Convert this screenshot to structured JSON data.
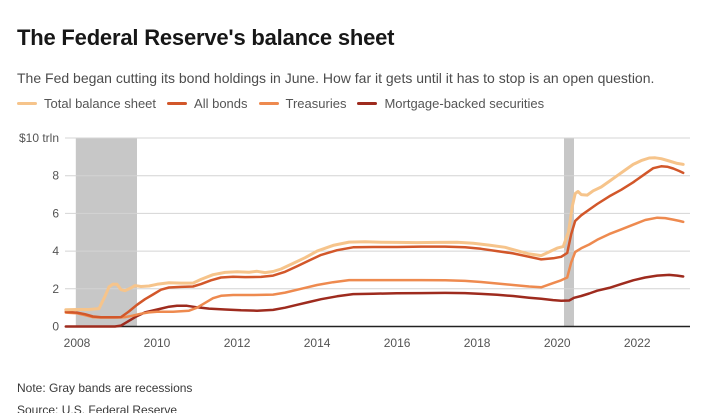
{
  "header": {
    "title": "The Federal Reserve's balance sheet",
    "subtitle": "The Fed began cutting its bond holdings in June. How far it gets until it has to stop is an open question."
  },
  "footer": {
    "note": "Note: Gray bands are recessions",
    "source": "Source: U.S. Federal Reserve"
  },
  "chart_data": {
    "type": "line",
    "title": "The Federal Reserve's balance sheet",
    "subtitle": "The Fed began cutting its bond holdings in June. How far it gets until it has to stop is an open question.",
    "unit": "trillions of U.S. dollars",
    "y_axis_top_label": "$10 trln",
    "ylim": [
      0,
      10
    ],
    "y_ticks": [
      0,
      2,
      4,
      6,
      8,
      10
    ],
    "x_range": [
      2007.7,
      2023.32
    ],
    "x_ticks": [
      2008,
      2010,
      2012,
      2014,
      2016,
      2018,
      2020,
      2022
    ],
    "grid": true,
    "legend_position": "top",
    "colors": {
      "recession_band": "#c7c7c7",
      "gridline": "#d4d4d4",
      "axis_line": "#222222"
    },
    "recessions": [
      {
        "start": 2007.97,
        "end": 2009.5
      },
      {
        "start": 2020.17,
        "end": 2020.42
      }
    ],
    "series": [
      {
        "name": "Total balance sheet",
        "color": "#f6c48b",
        "points": [
          [
            2007.72,
            0.89
          ],
          [
            2008.0,
            0.9
          ],
          [
            2008.3,
            0.9
          ],
          [
            2008.55,
            0.95
          ],
          [
            2008.7,
            1.6
          ],
          [
            2008.8,
            2.1
          ],
          [
            2008.9,
            2.25
          ],
          [
            2009.0,
            2.24
          ],
          [
            2009.1,
            1.95
          ],
          [
            2009.2,
            1.9
          ],
          [
            2009.35,
            2.05
          ],
          [
            2009.45,
            2.17
          ],
          [
            2009.6,
            2.12
          ],
          [
            2009.8,
            2.15
          ],
          [
            2010.0,
            2.24
          ],
          [
            2010.3,
            2.32
          ],
          [
            2010.6,
            2.3
          ],
          [
            2010.9,
            2.3
          ],
          [
            2011.1,
            2.5
          ],
          [
            2011.4,
            2.75
          ],
          [
            2011.7,
            2.87
          ],
          [
            2012.0,
            2.9
          ],
          [
            2012.3,
            2.88
          ],
          [
            2012.5,
            2.93
          ],
          [
            2012.7,
            2.86
          ],
          [
            2012.9,
            2.92
          ],
          [
            2013.1,
            3.05
          ],
          [
            2013.4,
            3.35
          ],
          [
            2013.7,
            3.65
          ],
          [
            2014.0,
            4.0
          ],
          [
            2014.4,
            4.3
          ],
          [
            2014.8,
            4.48
          ],
          [
            2015.2,
            4.5
          ],
          [
            2015.6,
            4.47
          ],
          [
            2016.0,
            4.46
          ],
          [
            2016.5,
            4.45
          ],
          [
            2017.0,
            4.46
          ],
          [
            2017.5,
            4.47
          ],
          [
            2017.9,
            4.42
          ],
          [
            2018.3,
            4.32
          ],
          [
            2018.7,
            4.2
          ],
          [
            2019.0,
            4.02
          ],
          [
            2019.3,
            3.85
          ],
          [
            2019.6,
            3.76
          ],
          [
            2019.8,
            3.96
          ],
          [
            2020.0,
            4.16
          ],
          [
            2020.15,
            4.24
          ],
          [
            2020.28,
            5.0
          ],
          [
            2020.38,
            6.4
          ],
          [
            2020.45,
            7.05
          ],
          [
            2020.52,
            7.16
          ],
          [
            2020.6,
            7.0
          ],
          [
            2020.75,
            6.97
          ],
          [
            2020.9,
            7.2
          ],
          [
            2021.1,
            7.4
          ],
          [
            2021.3,
            7.7
          ],
          [
            2021.5,
            8.0
          ],
          [
            2021.7,
            8.3
          ],
          [
            2021.9,
            8.6
          ],
          [
            2022.1,
            8.8
          ],
          [
            2022.3,
            8.94
          ],
          [
            2022.45,
            8.95
          ],
          [
            2022.6,
            8.9
          ],
          [
            2022.8,
            8.78
          ],
          [
            2023.0,
            8.65
          ],
          [
            2023.15,
            8.6
          ]
        ]
      },
      {
        "name": "All bonds",
        "color": "#d2572a",
        "points": [
          [
            2007.72,
            0.78
          ],
          [
            2008.0,
            0.74
          ],
          [
            2008.2,
            0.65
          ],
          [
            2008.4,
            0.53
          ],
          [
            2008.6,
            0.49
          ],
          [
            2008.9,
            0.49
          ],
          [
            2009.1,
            0.5
          ],
          [
            2009.3,
            0.8
          ],
          [
            2009.5,
            1.15
          ],
          [
            2009.7,
            1.45
          ],
          [
            2009.9,
            1.7
          ],
          [
            2010.1,
            1.95
          ],
          [
            2010.3,
            2.07
          ],
          [
            2010.6,
            2.1
          ],
          [
            2010.9,
            2.12
          ],
          [
            2011.1,
            2.25
          ],
          [
            2011.35,
            2.45
          ],
          [
            2011.6,
            2.6
          ],
          [
            2011.9,
            2.64
          ],
          [
            2012.2,
            2.62
          ],
          [
            2012.6,
            2.63
          ],
          [
            2012.9,
            2.7
          ],
          [
            2013.2,
            2.9
          ],
          [
            2013.5,
            3.2
          ],
          [
            2013.8,
            3.5
          ],
          [
            2014.1,
            3.8
          ],
          [
            2014.5,
            4.05
          ],
          [
            2014.9,
            4.2
          ],
          [
            2015.4,
            4.22
          ],
          [
            2016.0,
            4.22
          ],
          [
            2016.6,
            4.24
          ],
          [
            2017.2,
            4.24
          ],
          [
            2017.7,
            4.2
          ],
          [
            2018.1,
            4.12
          ],
          [
            2018.5,
            4.0
          ],
          [
            2018.9,
            3.88
          ],
          [
            2019.3,
            3.7
          ],
          [
            2019.6,
            3.56
          ],
          [
            2019.9,
            3.62
          ],
          [
            2020.1,
            3.7
          ],
          [
            2020.25,
            3.9
          ],
          [
            2020.35,
            4.9
          ],
          [
            2020.45,
            5.6
          ],
          [
            2020.6,
            5.9
          ],
          [
            2020.8,
            6.2
          ],
          [
            2021.0,
            6.5
          ],
          [
            2021.3,
            6.9
          ],
          [
            2021.6,
            7.25
          ],
          [
            2021.9,
            7.65
          ],
          [
            2022.2,
            8.1
          ],
          [
            2022.4,
            8.4
          ],
          [
            2022.6,
            8.5
          ],
          [
            2022.75,
            8.48
          ],
          [
            2022.9,
            8.38
          ],
          [
            2023.05,
            8.25
          ],
          [
            2023.15,
            8.15
          ]
        ]
      },
      {
        "name": "Treasuries",
        "color": "#ee8a4f",
        "points": [
          [
            2007.72,
            0.74
          ],
          [
            2008.0,
            0.7
          ],
          [
            2008.2,
            0.6
          ],
          [
            2008.4,
            0.5
          ],
          [
            2008.6,
            0.48
          ],
          [
            2009.0,
            0.48
          ],
          [
            2009.2,
            0.5
          ],
          [
            2009.4,
            0.58
          ],
          [
            2009.6,
            0.68
          ],
          [
            2009.8,
            0.75
          ],
          [
            2010.0,
            0.78
          ],
          [
            2010.4,
            0.78
          ],
          [
            2010.8,
            0.84
          ],
          [
            2011.0,
            1.0
          ],
          [
            2011.2,
            1.25
          ],
          [
            2011.4,
            1.5
          ],
          [
            2011.6,
            1.63
          ],
          [
            2011.9,
            1.67
          ],
          [
            2012.4,
            1.67
          ],
          [
            2012.9,
            1.69
          ],
          [
            2013.2,
            1.8
          ],
          [
            2013.6,
            2.0
          ],
          [
            2014.0,
            2.2
          ],
          [
            2014.4,
            2.35
          ],
          [
            2014.8,
            2.46
          ],
          [
            2015.4,
            2.46
          ],
          [
            2016.0,
            2.46
          ],
          [
            2016.6,
            2.46
          ],
          [
            2017.2,
            2.45
          ],
          [
            2017.7,
            2.42
          ],
          [
            2018.1,
            2.36
          ],
          [
            2018.5,
            2.28
          ],
          [
            2018.9,
            2.2
          ],
          [
            2019.3,
            2.12
          ],
          [
            2019.6,
            2.08
          ],
          [
            2019.9,
            2.3
          ],
          [
            2020.1,
            2.45
          ],
          [
            2020.25,
            2.6
          ],
          [
            2020.35,
            3.4
          ],
          [
            2020.45,
            3.95
          ],
          [
            2020.6,
            4.15
          ],
          [
            2020.8,
            4.35
          ],
          [
            2021.0,
            4.6
          ],
          [
            2021.3,
            4.9
          ],
          [
            2021.6,
            5.15
          ],
          [
            2021.9,
            5.4
          ],
          [
            2022.2,
            5.65
          ],
          [
            2022.5,
            5.77
          ],
          [
            2022.7,
            5.75
          ],
          [
            2022.9,
            5.67
          ],
          [
            2023.05,
            5.6
          ],
          [
            2023.15,
            5.55
          ]
        ]
      },
      {
        "name": "Mortgage-backed securities",
        "color": "#9e2b1e",
        "points": [
          [
            2007.72,
            0.0
          ],
          [
            2008.5,
            0.0
          ],
          [
            2008.95,
            0.0
          ],
          [
            2009.1,
            0.05
          ],
          [
            2009.3,
            0.3
          ],
          [
            2009.5,
            0.55
          ],
          [
            2009.7,
            0.75
          ],
          [
            2009.9,
            0.85
          ],
          [
            2010.1,
            0.95
          ],
          [
            2010.3,
            1.05
          ],
          [
            2010.5,
            1.1
          ],
          [
            2010.75,
            1.1
          ],
          [
            2011.0,
            1.02
          ],
          [
            2011.3,
            0.95
          ],
          [
            2011.7,
            0.9
          ],
          [
            2012.1,
            0.86
          ],
          [
            2012.5,
            0.84
          ],
          [
            2012.9,
            0.88
          ],
          [
            2013.2,
            1.0
          ],
          [
            2013.5,
            1.15
          ],
          [
            2013.8,
            1.3
          ],
          [
            2014.1,
            1.45
          ],
          [
            2014.5,
            1.6
          ],
          [
            2014.9,
            1.72
          ],
          [
            2015.4,
            1.74
          ],
          [
            2016.0,
            1.76
          ],
          [
            2016.6,
            1.77
          ],
          [
            2017.2,
            1.78
          ],
          [
            2017.7,
            1.77
          ],
          [
            2018.1,
            1.73
          ],
          [
            2018.5,
            1.68
          ],
          [
            2018.9,
            1.62
          ],
          [
            2019.3,
            1.53
          ],
          [
            2019.6,
            1.47
          ],
          [
            2019.9,
            1.4
          ],
          [
            2020.1,
            1.37
          ],
          [
            2020.3,
            1.38
          ],
          [
            2020.42,
            1.52
          ],
          [
            2020.6,
            1.62
          ],
          [
            2020.8,
            1.75
          ],
          [
            2021.0,
            1.9
          ],
          [
            2021.3,
            2.05
          ],
          [
            2021.6,
            2.25
          ],
          [
            2021.9,
            2.45
          ],
          [
            2022.2,
            2.6
          ],
          [
            2022.5,
            2.7
          ],
          [
            2022.8,
            2.74
          ],
          [
            2023.0,
            2.7
          ],
          [
            2023.15,
            2.65
          ]
        ]
      }
    ]
  }
}
